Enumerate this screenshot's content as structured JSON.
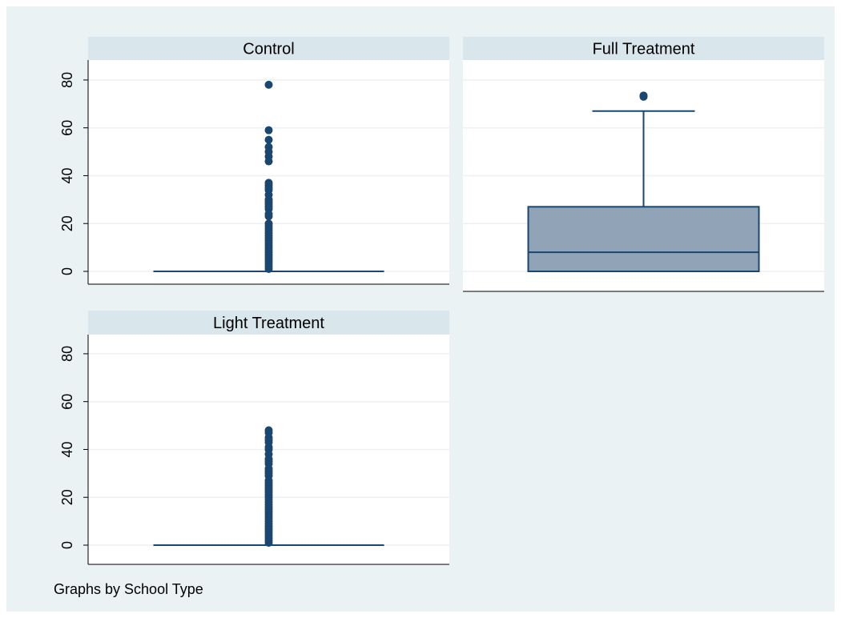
{
  "colors": {
    "outer_bg": "#eaf2f3",
    "plot_bg": "#ffffff",
    "title_strip": "#d9e6eb",
    "grid": "#eaf2f3",
    "mark": "#1a476f",
    "box_fill": "#90a3b7"
  },
  "note": "Graphs by School Type",
  "chart_data": [
    {
      "type": "box",
      "panel": "Control",
      "title": "Control",
      "ylim": [
        0,
        87
      ],
      "yticks": [
        0,
        20,
        40,
        60,
        80
      ],
      "grid": true,
      "box": {
        "q1": 0,
        "median": 0,
        "q3": 0,
        "whisker_low": 0,
        "whisker_high": 0
      },
      "outliers": [
        78,
        59,
        55,
        52,
        50,
        48,
        46,
        37,
        36,
        35,
        34,
        32,
        30,
        29,
        28,
        27,
        26,
        24,
        23,
        20,
        19,
        18,
        17,
        16,
        15,
        14,
        13,
        12,
        11,
        10,
        9,
        8,
        7,
        6,
        5,
        4,
        3,
        2,
        1
      ]
    },
    {
      "type": "box",
      "panel": "Full Treatment",
      "title": "Full Treatment",
      "ylim": [
        0,
        87
      ],
      "yticks": [
        0,
        20,
        40,
        60,
        80
      ],
      "grid": true,
      "box": {
        "q1": 0,
        "median": 8,
        "q3": 27,
        "whisker_low": 0,
        "whisker_high": 67
      },
      "outliers": [
        73,
        73.5
      ]
    },
    {
      "type": "box",
      "panel": "Light Treatment",
      "title": "Light Treatment",
      "ylim": [
        0,
        87
      ],
      "yticks": [
        0,
        20,
        40,
        60,
        80
      ],
      "grid": true,
      "box": {
        "q1": 0,
        "median": 0,
        "q3": 0,
        "whisker_low": 0,
        "whisker_high": 0
      },
      "outliers": [
        48,
        47,
        45,
        44,
        43,
        41,
        40,
        38,
        36,
        35,
        34,
        32,
        31,
        30,
        29,
        27,
        26,
        25,
        24,
        23,
        22,
        21,
        20,
        19,
        18,
        17,
        16,
        15,
        14,
        13,
        12,
        11,
        10,
        9,
        8,
        7,
        6,
        5,
        4,
        3,
        2,
        1
      ]
    }
  ]
}
